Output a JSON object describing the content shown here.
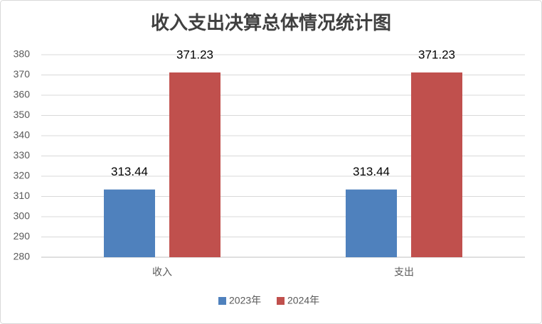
{
  "chart_data": {
    "type": "bar",
    "title": "收入支出决算总体情况统计图",
    "categories": [
      "收入",
      "支出"
    ],
    "series": [
      {
        "name": "2023年",
        "color": "#4f81bd",
        "values": [
          313.44,
          313.44
        ]
      },
      {
        "name": "2024年",
        "color": "#c0504d",
        "values": [
          371.23,
          371.23
        ]
      }
    ],
    "ylim": [
      280,
      380
    ],
    "yticks": [
      280,
      290,
      300,
      310,
      320,
      330,
      340,
      350,
      360,
      370,
      380
    ],
    "grid": true,
    "legend": "bottom"
  }
}
